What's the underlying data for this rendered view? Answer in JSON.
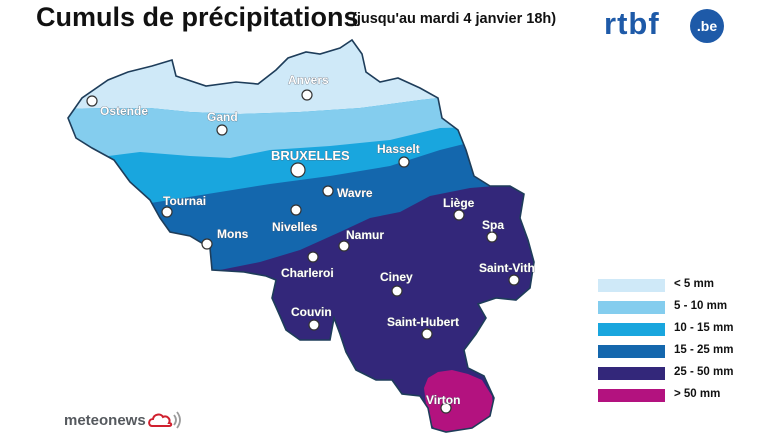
{
  "header": {
    "title": "Cumuls de précipitations",
    "subtitle": "(jusqu'au mardi 4 janvier 18h)"
  },
  "logo": {
    "brand": "rtbf",
    "suffix": ".be",
    "color": "#1e5aa8"
  },
  "cities": [
    {
      "name": "Anvers",
      "label": "Anvers"
    },
    {
      "name": "Ostende",
      "label": "Ostende"
    },
    {
      "name": "Gand",
      "label": "Gand"
    },
    {
      "name": "Bruxelles",
      "label": "BRUXELLES"
    },
    {
      "name": "Hasselt",
      "label": "Hasselt"
    },
    {
      "name": "Wavre",
      "label": "Wavre"
    },
    {
      "name": "Tournai",
      "label": "Tournai"
    },
    {
      "name": "Mons",
      "label": "Mons"
    },
    {
      "name": "Nivelles",
      "label": "Nivelles"
    },
    {
      "name": "Namur",
      "label": "Namur"
    },
    {
      "name": "Liege",
      "label": "Liège"
    },
    {
      "name": "Spa",
      "label": "Spa"
    },
    {
      "name": "Charleroi",
      "label": "Charleroi"
    },
    {
      "name": "Ciney",
      "label": "Ciney"
    },
    {
      "name": "Saint-Vith",
      "label": "Saint-Vith"
    },
    {
      "name": "Couvin",
      "label": "Couvin"
    },
    {
      "name": "Saint-Hubert",
      "label": "Saint-Hubert"
    },
    {
      "name": "Virton",
      "label": "Virton"
    }
  ],
  "legend": [
    {
      "label": "< 5 mm",
      "color": "#cfe9f8"
    },
    {
      "label": "5 - 10 mm",
      "color": "#84cdee"
    },
    {
      "label": "10 - 15 mm",
      "color": "#19a6de"
    },
    {
      "label": "15 - 25 mm",
      "color": "#1467ad"
    },
    {
      "label": "25 - 50 mm",
      "color": "#33277a"
    },
    {
      "label": "> 50 mm",
      "color": "#b3127f"
    }
  ],
  "footer": {
    "brand": "meteonews"
  },
  "icons": {
    "meteonews_logo": "cloud-signal-icon"
  }
}
